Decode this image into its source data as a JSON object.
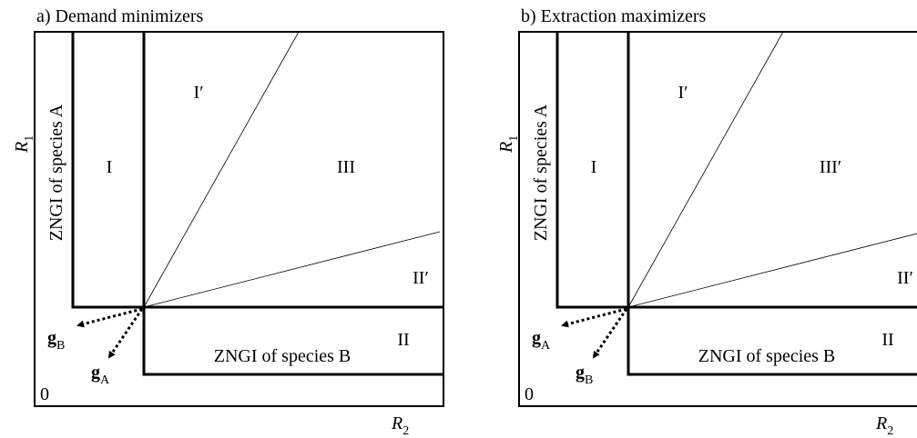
{
  "panels": [
    {
      "title": "a) Demand minimizers",
      "y_axis": {
        "symbol": "R",
        "subscript": "1"
      },
      "x_axis": {
        "symbol": "R",
        "subscript": "2"
      },
      "origin": "0",
      "zngi_a": "ZNGI of species A",
      "zngi_b": "ZNGI of species B",
      "regions": [
        "I",
        "I′",
        "III",
        "II′",
        "II"
      ],
      "vectors": [
        {
          "symbol": "g",
          "subscript": "B"
        },
        {
          "symbol": "g",
          "subscript": "A"
        }
      ]
    },
    {
      "title": "b) Extraction maximizers",
      "y_axis": {
        "symbol": "R",
        "subscript": "1"
      },
      "x_axis": {
        "symbol": "R",
        "subscript": "2"
      },
      "origin": "0",
      "zngi_a": "ZNGI of species A",
      "zngi_b": "ZNGI of species B",
      "regions": [
        "I",
        "I′",
        "III′",
        "II′",
        "II"
      ],
      "vectors": [
        {
          "symbol": "g",
          "subscript": "A"
        },
        {
          "symbol": "g",
          "subscript": "B"
        }
      ]
    }
  ]
}
